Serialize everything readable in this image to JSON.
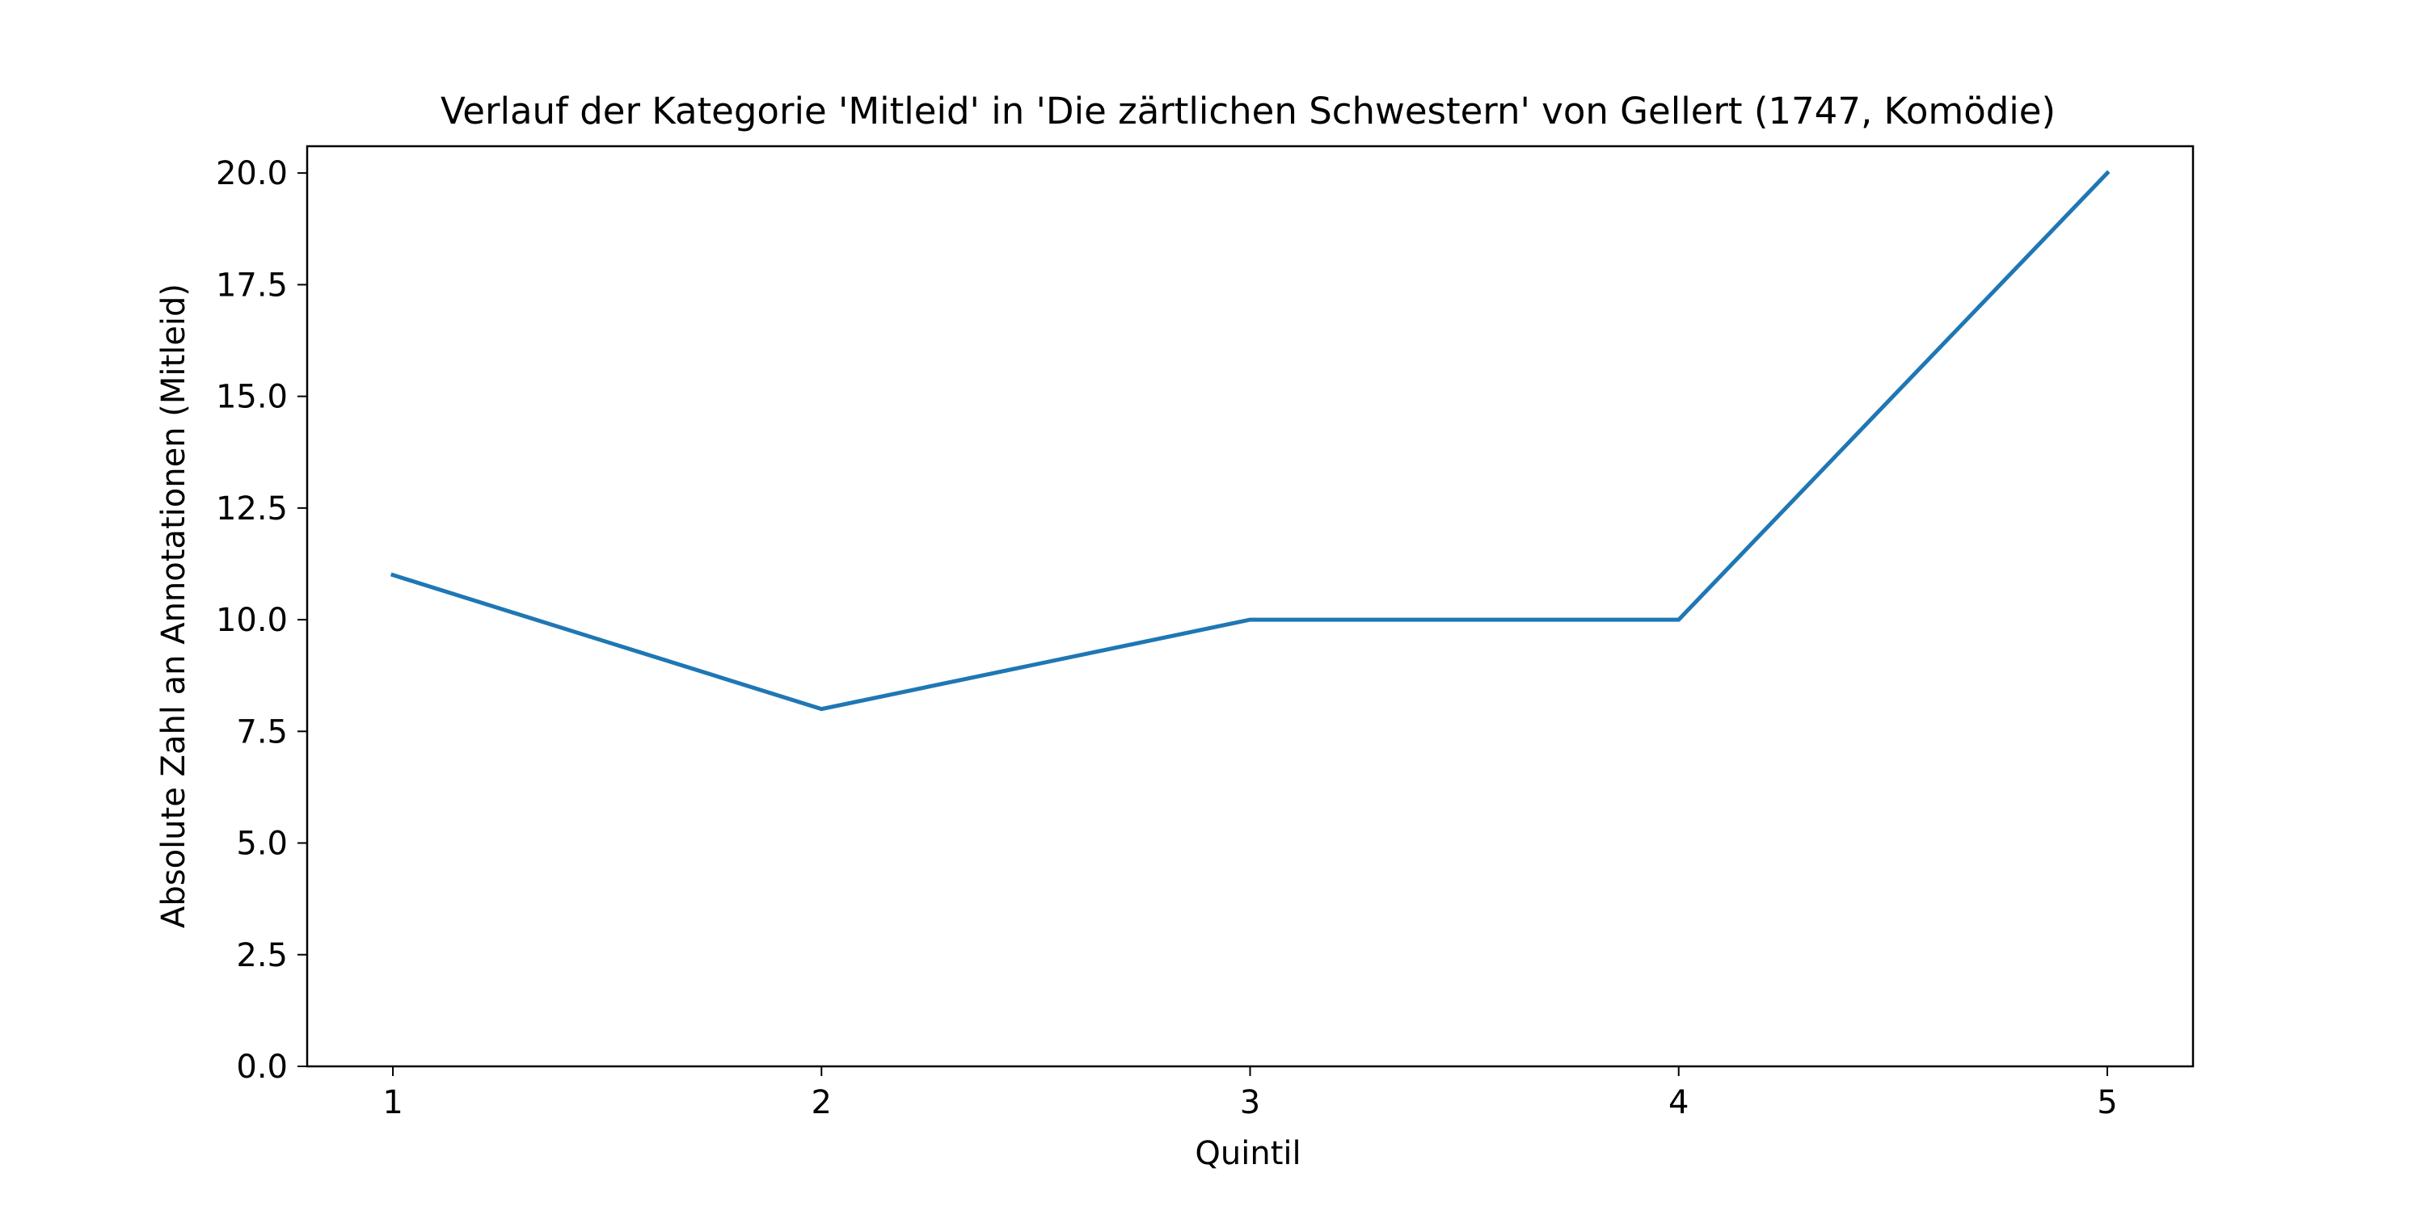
{
  "chart_data": {
    "type": "line",
    "title": "Verlauf der Kategorie 'Mitleid' in 'Die zärtlichen Schwestern' von Gellert (1747, Komödie)",
    "xlabel": "Quintil",
    "ylabel": "Absolute Zahl an Annotationen (Mitleid)",
    "x": [
      1,
      2,
      3,
      4,
      5
    ],
    "series": [
      {
        "values": [
          11,
          8,
          10,
          10,
          20
        ]
      }
    ],
    "xlim": [
      0.8,
      5.2
    ],
    "ylim": [
      0,
      20.6
    ],
    "xticks": [
      1,
      2,
      3,
      4,
      5
    ],
    "xtick_labels": [
      "1",
      "2",
      "3",
      "4",
      "5"
    ],
    "yticks": [
      0,
      2.5,
      5,
      7.5,
      10,
      12.5,
      15,
      17.5,
      20
    ],
    "ytick_labels": [
      "0.0",
      "2.5",
      "5.0",
      "7.5",
      "10.0",
      "12.5",
      "15.0",
      "17.5",
      "20.0"
    ],
    "grid": false,
    "legend": "none",
    "colors": {
      "line": "#1f77b4",
      "axes": "#000000",
      "background": "#ffffff"
    }
  }
}
